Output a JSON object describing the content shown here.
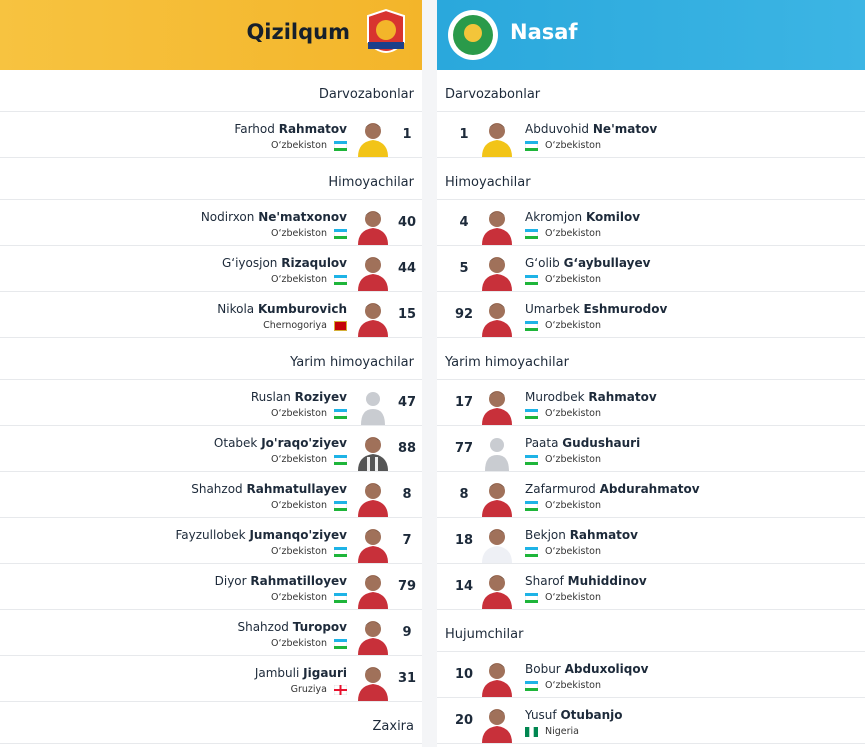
{
  "teams": [
    {
      "name": "Qizilqum",
      "sections": [
        {
          "title": "Darvozabonlar",
          "players": [
            {
              "first": "Farhod",
              "last": "Rahmatov",
              "country": "O‘zbekiston",
              "number": "1"
            }
          ]
        },
        {
          "title": "Himoyachilar",
          "players": [
            {
              "first": "Nodirxon",
              "last": "Ne'matxonov",
              "country": "O‘zbekiston",
              "number": "40"
            },
            {
              "first": "G‘iyosjon",
              "last": "Rizaqulov",
              "country": "O‘zbekiston",
              "number": "44"
            },
            {
              "first": "Nikola",
              "last": "Kumburovich",
              "country": "Chernogoriya",
              "number": "15"
            }
          ]
        },
        {
          "title": "Yarim himoyachilar",
          "players": [
            {
              "first": "Ruslan",
              "last": "Roziyev",
              "country": "O‘zbekiston",
              "number": "47"
            },
            {
              "first": "Otabek",
              "last": "Jo'raqo'ziyev",
              "country": "O‘zbekiston",
              "number": "88"
            },
            {
              "first": "Shahzod",
              "last": "Rahmatullayev",
              "country": "O‘zbekiston",
              "number": "8"
            },
            {
              "first": "Fayzullobek",
              "last": "Jumanqo'ziyev",
              "country": "O‘zbekiston",
              "number": "7"
            },
            {
              "first": "Diyor",
              "last": "Rahmatilloyev",
              "country": "O‘zbekiston",
              "number": "79"
            },
            {
              "first": "Shahzod",
              "last": "Turopov",
              "country": "O‘zbekiston",
              "number": "9"
            },
            {
              "first": "Jambuli",
              "last": "Jigauri",
              "country": "Gruziya",
              "number": "31"
            }
          ]
        },
        {
          "title": "Zaxira",
          "players": []
        }
      ]
    },
    {
      "name": "Nasaf",
      "sections": [
        {
          "title": "Darvozabonlar",
          "players": [
            {
              "first": "Abduvohid",
              "last": "Ne'matov",
              "country": "O‘zbekiston",
              "number": "1"
            }
          ]
        },
        {
          "title": "Himoyachilar",
          "players": [
            {
              "first": "Akromjon",
              "last": "Komilov",
              "country": "O‘zbekiston",
              "number": "4"
            },
            {
              "first": "G‘olib",
              "last": "G‘aybullayev",
              "country": "O‘zbekiston",
              "number": "5"
            },
            {
              "first": "Umarbek",
              "last": "Eshmurodov",
              "country": "O‘zbekiston",
              "number": "92"
            }
          ]
        },
        {
          "title": "Yarim himoyachilar",
          "players": [
            {
              "first": "Murodbek",
              "last": "Rahmatov",
              "country": "O‘zbekiston",
              "number": "17"
            },
            {
              "first": "Paata",
              "last": "Gudushauri",
              "country": "O‘zbekiston",
              "number": "77"
            },
            {
              "first": "Zafarmurod",
              "last": "Abdurahmatov",
              "country": "O‘zbekiston",
              "number": "8"
            },
            {
              "first": "Bekjon",
              "last": "Rahmatov",
              "country": "O‘zbekiston",
              "number": "18"
            },
            {
              "first": "Sharof",
              "last": "Muhiddinov",
              "country": "O‘zbekiston",
              "number": "14"
            }
          ]
        },
        {
          "title": "Hujumchilar",
          "players": [
            {
              "first": "Bobur",
              "last": "Abduxoliqov",
              "country": "O‘zbekiston",
              "number": "10"
            },
            {
              "first": "Yusuf",
              "last": "Otubanjo",
              "country": "Nigeria",
              "number": "20"
            }
          ]
        }
      ]
    }
  ]
}
